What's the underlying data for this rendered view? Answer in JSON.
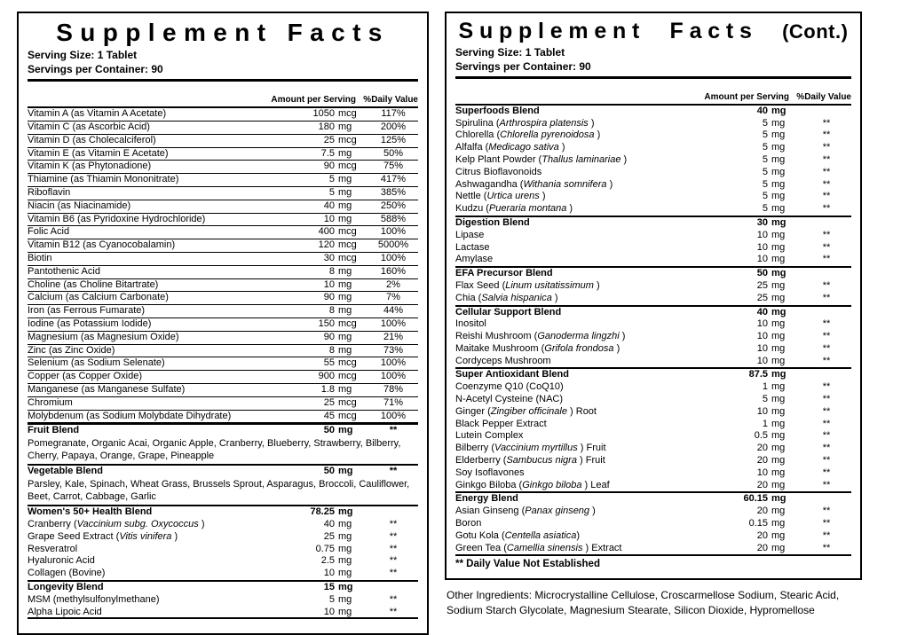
{
  "left": {
    "title": "Supplement Facts",
    "serving_size": "Serving Size: 1 Tablet",
    "servings_per_container": "Servings per Container: 90",
    "col_amount": "Amount per Serving",
    "col_dv": "%Daily Value",
    "rows": [
      {
        "type": "item",
        "name": "Vitamin A (as Vitamin A Acetate)",
        "amount": "1050",
        "unit": "mcg",
        "dv": "117%"
      },
      {
        "type": "item",
        "name": "Vitamin C (as Ascorbic Acid)",
        "amount": "180",
        "unit": "mg",
        "dv": "200%"
      },
      {
        "type": "item",
        "name": "Vitamin D (as Cholecalciferol)",
        "amount": "25",
        "unit": "mcg",
        "dv": "125%"
      },
      {
        "type": "item",
        "name": "Vitamin E (as Vitamin E Acetate)",
        "amount": "7.5",
        "unit": "mg",
        "dv": "50%"
      },
      {
        "type": "item",
        "name": "Vitamin K (as Phytonadione)",
        "amount": "90",
        "unit": "mcg",
        "dv": "75%"
      },
      {
        "type": "item",
        "name": "Thiamine (as Thiamin Mononitrate)",
        "amount": "5",
        "unit": "mg",
        "dv": "417%"
      },
      {
        "type": "item",
        "name": "Riboflavin",
        "amount": "5",
        "unit": "mg",
        "dv": "385%"
      },
      {
        "type": "item",
        "name": "Niacin (as Niacinamide)",
        "amount": "40",
        "unit": "mg",
        "dv": "250%"
      },
      {
        "type": "item",
        "name": "Vitamin B6 (as Pyridoxine Hydrochloride)",
        "amount": "10",
        "unit": "mg",
        "dv": "588%"
      },
      {
        "type": "item",
        "name": "Folic Acid",
        "amount": "400",
        "unit": "mcg",
        "dv": "100%"
      },
      {
        "type": "item",
        "name": "Vitamin B12 (as Cyanocobalamin)",
        "amount": "120",
        "unit": "mcg",
        "dv": "5000%"
      },
      {
        "type": "item",
        "name": "Biotin",
        "amount": "30",
        "unit": "mcg",
        "dv": "100%"
      },
      {
        "type": "item",
        "name": "Pantothenic Acid",
        "amount": "8",
        "unit": "mg",
        "dv": "160%"
      },
      {
        "type": "item",
        "name": "Choline (as Choline Bitartrate)",
        "amount": "10",
        "unit": "mg",
        "dv": "2%"
      },
      {
        "type": "item",
        "name": "Calcium (as Calcium Carbonate)",
        "amount": "90",
        "unit": "mg",
        "dv": "7%"
      },
      {
        "type": "item",
        "name": "Iron (as Ferrous Fumarate)",
        "amount": "8",
        "unit": "mg",
        "dv": "44%"
      },
      {
        "type": "item",
        "name": "Iodine (as Potassium Iodide)",
        "amount": "150",
        "unit": "mcg",
        "dv": "100%"
      },
      {
        "type": "item",
        "name": "Magnesium (as Magnesium Oxide)",
        "amount": "90",
        "unit": "mg",
        "dv": "21%"
      },
      {
        "type": "item",
        "name": "Zinc (as Zinc Oxide)",
        "amount": "8",
        "unit": "mg",
        "dv": "73%"
      },
      {
        "type": "item",
        "name": "Selenium (as Sodium Selenate)",
        "amount": "55",
        "unit": "mcg",
        "dv": "100%"
      },
      {
        "type": "item",
        "name": "Copper (as Copper Oxide)",
        "amount": "900",
        "unit": "mcg",
        "dv": "100%"
      },
      {
        "type": "item",
        "name": "Manganese (as Manganese Sulfate)",
        "amount": "1.8",
        "unit": "mg",
        "dv": "78%"
      },
      {
        "type": "item",
        "name": "Chromium",
        "amount": "25",
        "unit": "mcg",
        "dv": "71%"
      },
      {
        "type": "item",
        "name": "Molybdenum (as Sodium Molybdate Dihydrate)",
        "amount": "45",
        "unit": "mcg",
        "dv": "100%"
      },
      {
        "type": "blend",
        "name": "Fruit Blend",
        "amount": "50",
        "unit": "mg",
        "dv": "**"
      },
      {
        "type": "desc",
        "name": "Pomegranate, Organic Acai, Organic Apple, Cranberry, Blueberry, Strawberry, Bilberry, Cherry, Papaya, Orange, Grape, Pineapple"
      },
      {
        "type": "blend",
        "name": "Vegetable Blend",
        "amount": "50",
        "unit": "mg",
        "dv": "**"
      },
      {
        "type": "desc",
        "name": "Parsley, Kale, Spinach, Wheat Grass, Brussels Sprout, Asparagus, Broccoli, Cauliflower, Beet, Carrot, Cabbage, Garlic"
      },
      {
        "type": "blend",
        "name": "Women's 50+ Health Blend",
        "amount": "78.25",
        "unit": "mg",
        "dv": ""
      },
      {
        "type": "sub",
        "name": "Cranberry (",
        "latin": "Vaccinium subg. Oxycoccus",
        "suffix": " )",
        "amount": "40",
        "unit": "mg",
        "dv": "**"
      },
      {
        "type": "sub",
        "name": "Grape Seed Extract (",
        "latin": "Vitis vinifera",
        "suffix": " )",
        "amount": "25",
        "unit": "mg",
        "dv": "**"
      },
      {
        "type": "sub",
        "name": "Resveratrol",
        "amount": "0.75",
        "unit": "mg",
        "dv": "**"
      },
      {
        "type": "sub",
        "name": "Hyaluronic Acid",
        "amount": "2.5",
        "unit": "mg",
        "dv": "**"
      },
      {
        "type": "sub",
        "name": "Collagen (Bovine)",
        "amount": "10",
        "unit": "mg",
        "dv": "**"
      },
      {
        "type": "blend",
        "name": "Longevity Blend",
        "amount": "15",
        "unit": "mg",
        "dv": ""
      },
      {
        "type": "sub",
        "name": "MSM (methylsulfonylmethane)",
        "amount": "5",
        "unit": "mg",
        "dv": "**"
      },
      {
        "type": "sub",
        "name": "Alpha Lipoic Acid",
        "amount": "10",
        "unit": "mg",
        "dv": "**"
      }
    ]
  },
  "right": {
    "title": "Supplement Facts",
    "cont": "(Cont.)",
    "serving_size": "Serving Size: 1 Tablet",
    "servings_per_container": "Servings per Container: 90",
    "col_amount": "Amount per Serving",
    "col_dv": "%Daily Value",
    "rows": [
      {
        "type": "blend",
        "name": "Superfoods Blend",
        "amount": "40",
        "unit": "mg",
        "dv": ""
      },
      {
        "type": "sub",
        "name": "Spirulina (",
        "latin": "Arthrospira platensis",
        "suffix": " )",
        "amount": "5",
        "unit": "mg",
        "dv": "**"
      },
      {
        "type": "sub",
        "name": "Chlorella (",
        "latin": "Chlorella pyrenoidosa",
        "suffix": " )",
        "amount": "5",
        "unit": "mg",
        "dv": "**"
      },
      {
        "type": "sub",
        "name": "Alfalfa (",
        "latin": "Medicago sativa",
        "suffix": " )",
        "amount": "5",
        "unit": "mg",
        "dv": "**"
      },
      {
        "type": "sub",
        "name": "Kelp Plant Powder (",
        "latin": "Thallus laminariae",
        "suffix": " )",
        "amount": "5",
        "unit": "mg",
        "dv": "**"
      },
      {
        "type": "sub",
        "name": "Citrus Bioflavonoids",
        "amount": "5",
        "unit": "mg",
        "dv": "**"
      },
      {
        "type": "sub",
        "name": "Ashwagandha (",
        "latin": "Withania somnifera",
        "suffix": " )",
        "amount": "5",
        "unit": "mg",
        "dv": "**"
      },
      {
        "type": "sub",
        "name": "Nettle (",
        "latin": "Urtica urens",
        "suffix": " )",
        "amount": "5",
        "unit": "mg",
        "dv": "**"
      },
      {
        "type": "sub",
        "name": "Kudzu (",
        "latin": "Pueraria montana",
        "suffix": " )",
        "amount": "5",
        "unit": "mg",
        "dv": "**"
      },
      {
        "type": "blend",
        "name": "Digestion Blend",
        "amount": "30",
        "unit": "mg",
        "dv": ""
      },
      {
        "type": "sub",
        "name": "Lipase",
        "amount": "10",
        "unit": "mg",
        "dv": "**"
      },
      {
        "type": "sub",
        "name": "Lactase",
        "amount": "10",
        "unit": "mg",
        "dv": "**"
      },
      {
        "type": "sub",
        "name": "Amylase",
        "amount": "10",
        "unit": "mg",
        "dv": "**"
      },
      {
        "type": "blend",
        "name": "EFA Precursor Blend",
        "amount": "50",
        "unit": "mg",
        "dv": ""
      },
      {
        "type": "sub",
        "name": "Flax Seed (",
        "latin": "Linum usitatissimum",
        "suffix": " )",
        "amount": "25",
        "unit": "mg",
        "dv": "**"
      },
      {
        "type": "sub",
        "name": "Chia (",
        "latin": "Salvia hispanica",
        "suffix": " )",
        "amount": "25",
        "unit": "mg",
        "dv": "**"
      },
      {
        "type": "blend",
        "name": "Cellular Support Blend",
        "amount": "40",
        "unit": "mg",
        "dv": ""
      },
      {
        "type": "sub",
        "name": "Inositol",
        "amount": "10",
        "unit": "mg",
        "dv": "**"
      },
      {
        "type": "sub",
        "name": "Reishi Mushroom (",
        "latin": "Ganoderma lingzhi",
        "suffix": " )",
        "amount": "10",
        "unit": "mg",
        "dv": "**"
      },
      {
        "type": "sub",
        "name": "Maitake Mushroom (",
        "latin": "Grifola frondosa",
        "suffix": " )",
        "amount": "10",
        "unit": "mg",
        "dv": "**"
      },
      {
        "type": "sub",
        "name": "Cordyceps Mushroom",
        "amount": "10",
        "unit": "mg",
        "dv": "**"
      },
      {
        "type": "blend",
        "name": "Super Antioxidant Blend",
        "amount": "87.5",
        "unit": "mg",
        "dv": ""
      },
      {
        "type": "sub",
        "name": "Coenzyme Q10 (CoQ10)",
        "amount": "1",
        "unit": "mg",
        "dv": "**"
      },
      {
        "type": "sub",
        "name": "N-Acetyl Cysteine (NAC)",
        "amount": "5",
        "unit": "mg",
        "dv": "**"
      },
      {
        "type": "sub",
        "name": "Ginger (",
        "latin": "Zingiber officinale",
        "suffix": " ) Root",
        "amount": "10",
        "unit": "mg",
        "dv": "**"
      },
      {
        "type": "sub",
        "name": "Black Pepper Extract",
        "amount": "1",
        "unit": "mg",
        "dv": "**"
      },
      {
        "type": "sub",
        "name": "Lutein Complex",
        "amount": "0.5",
        "unit": "mg",
        "dv": "**"
      },
      {
        "type": "sub",
        "name": "Bilberry (",
        "latin": "Vaccinium myrtillus",
        "suffix": " ) Fruit",
        "amount": "20",
        "unit": "mg",
        "dv": "**"
      },
      {
        "type": "sub",
        "name": "Elderberry (",
        "latin": "Sambucus nigra",
        "suffix": " ) Fruit",
        "amount": "20",
        "unit": "mg",
        "dv": "**"
      },
      {
        "type": "sub",
        "name": "Soy Isoflavones",
        "amount": "10",
        "unit": "mg",
        "dv": "**"
      },
      {
        "type": "sub",
        "name": "Ginkgo Biloba (",
        "latin": "Ginkgo biloba",
        "suffix": " ) Leaf",
        "amount": "20",
        "unit": "mg",
        "dv": "**"
      },
      {
        "type": "blend",
        "name": "Energy Blend",
        "amount": "60.15",
        "unit": "mg",
        "dv": ""
      },
      {
        "type": "sub",
        "name": "Asian Ginseng (",
        "latin": "Panax ginseng",
        "suffix": " )",
        "amount": "20",
        "unit": "mg",
        "dv": "**"
      },
      {
        "type": "sub",
        "name": "Boron",
        "amount": "0.15",
        "unit": "mg",
        "dv": "**"
      },
      {
        "type": "sub",
        "name": "Gotu Kola (",
        "latin": "Centella asiatica",
        "suffix": ")",
        "amount": "20",
        "unit": "mg",
        "dv": "**"
      },
      {
        "type": "sub",
        "name": "Green Tea (",
        "latin": "Camellia sinensis",
        "suffix": " ) Extract",
        "amount": "20",
        "unit": "mg",
        "dv": "**"
      }
    ],
    "footnote": "** Daily Value Not Established"
  },
  "other_ingredients": "Other Ingredients: Microcrystalline Cellulose, Croscarmellose Sodium, Stearic Acid, Sodium Starch Glycolate, Magnesium Stearate, Silicon Dioxide, Hypromellose"
}
